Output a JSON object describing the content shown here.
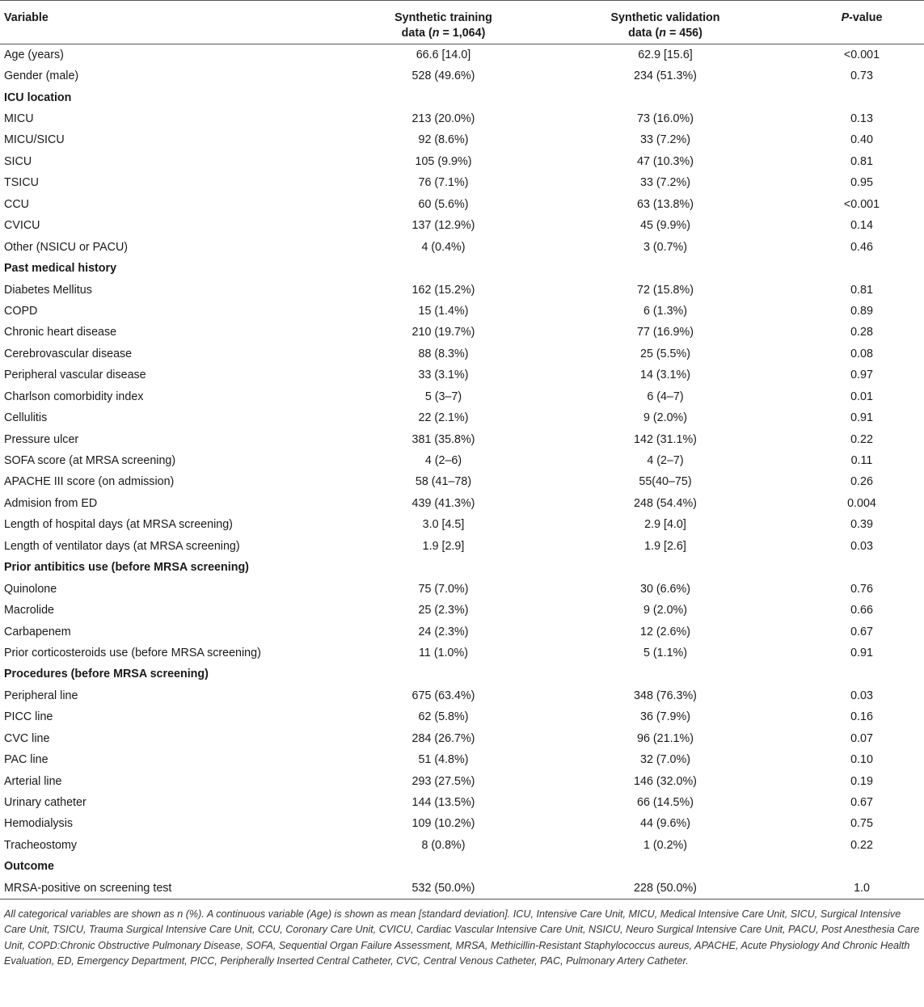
{
  "headers": {
    "variable": "Variable",
    "training_line1": "Synthetic training",
    "training_line2_pre": "data (",
    "training_n": "n",
    "training_line2_post": " = 1,064)",
    "validation_line1": "Synthetic validation",
    "validation_line2_pre": "data (",
    "validation_n": "n",
    "validation_line2_post": " = 456)",
    "pvalue_italic": "P",
    "pvalue_rest": "-value"
  },
  "rows": [
    {
      "type": "data",
      "variable": "Age (years)",
      "training": "66.6 [14.0]",
      "validation": "62.9 [15.6]",
      "p": "<0.001"
    },
    {
      "type": "data",
      "variable": "Gender (male)",
      "training": "528 (49.6%)",
      "validation": "234 (51.3%)",
      "p": "0.73"
    },
    {
      "type": "section",
      "variable": "ICU location"
    },
    {
      "type": "data",
      "variable": "MICU",
      "training": "213 (20.0%)",
      "validation": "73 (16.0%)",
      "p": "0.13"
    },
    {
      "type": "data",
      "variable": "MICU/SICU",
      "training": "92 (8.6%)",
      "validation": "33 (7.2%)",
      "p": "0.40"
    },
    {
      "type": "data",
      "variable": "SICU",
      "training": "105 (9.9%)",
      "validation": "47 (10.3%)",
      "p": "0.81"
    },
    {
      "type": "data",
      "variable": "TSICU",
      "training": "76 (7.1%)",
      "validation": "33 (7.2%)",
      "p": "0.95"
    },
    {
      "type": "data",
      "variable": "CCU",
      "training": "60 (5.6%)",
      "validation": "63 (13.8%)",
      "p": "<0.001"
    },
    {
      "type": "data",
      "variable": "CVICU",
      "training": "137 (12.9%)",
      "validation": "45 (9.9%)",
      "p": "0.14"
    },
    {
      "type": "data",
      "variable": "Other (NSICU or PACU)",
      "training": "4 (0.4%)",
      "validation": "3 (0.7%)",
      "p": "0.46"
    },
    {
      "type": "section",
      "variable": "Past medical history"
    },
    {
      "type": "data",
      "variable": "Diabetes Mellitus",
      "training": "162 (15.2%)",
      "validation": "72 (15.8%)",
      "p": "0.81"
    },
    {
      "type": "data",
      "variable": "COPD",
      "training": "15 (1.4%)",
      "validation": "6 (1.3%)",
      "p": "0.89"
    },
    {
      "type": "data",
      "variable": "Chronic heart disease",
      "training": "210 (19.7%)",
      "validation": "77 (16.9%)",
      "p": "0.28"
    },
    {
      "type": "data",
      "variable": "Cerebrovascular disease",
      "training": "88 (8.3%)",
      "validation": "25 (5.5%)",
      "p": "0.08"
    },
    {
      "type": "data",
      "variable": "Peripheral vascular disease",
      "training": "33 (3.1%)",
      "validation": "14 (3.1%)",
      "p": "0.97"
    },
    {
      "type": "data",
      "variable": "Charlson comorbidity index",
      "training": "5 (3–7)",
      "validation": "6 (4–7)",
      "p": "0.01"
    },
    {
      "type": "data",
      "variable": "Cellulitis",
      "training": "22 (2.1%)",
      "validation": "9 (2.0%)",
      "p": "0.91"
    },
    {
      "type": "data",
      "variable": "Pressure ulcer",
      "training": "381 (35.8%)",
      "validation": "142 (31.1%)",
      "p": "0.22"
    },
    {
      "type": "data",
      "variable": "SOFA score (at MRSA screening)",
      "training": "4 (2–6)",
      "validation": "4 (2–7)",
      "p": "0.11"
    },
    {
      "type": "data",
      "variable": "APACHE III score (on admission)",
      "training": "58 (41–78)",
      "validation": "55(40–75)",
      "p": "0.26"
    },
    {
      "type": "data",
      "variable": "Admision from ED",
      "training": "439 (41.3%)",
      "validation": "248 (54.4%)",
      "p": "0.004"
    },
    {
      "type": "data",
      "variable": "Length of hospital days (at MRSA screening)",
      "training": "3.0 [4.5]",
      "validation": "2.9 [4.0]",
      "p": "0.39"
    },
    {
      "type": "data",
      "variable": "Length of ventilator days (at MRSA screening)",
      "training": "1.9 [2.9]",
      "validation": "1.9 [2.6]",
      "p": "0.03"
    },
    {
      "type": "section",
      "variable": "Prior antibitics use (before MRSA screening)"
    },
    {
      "type": "data",
      "variable": "Quinolone",
      "training": "75 (7.0%)",
      "validation": "30 (6.6%)",
      "p": "0.76"
    },
    {
      "type": "data",
      "variable": "Macrolide",
      "training": "25 (2.3%)",
      "validation": "9 (2.0%)",
      "p": "0.66"
    },
    {
      "type": "data",
      "variable": "Carbapenem",
      "training": "24 (2.3%)",
      "validation": "12 (2.6%)",
      "p": "0.67"
    },
    {
      "type": "data",
      "variable": "Prior corticosteroids use (before MRSA screening)",
      "training": "11 (1.0%)",
      "validation": "5 (1.1%)",
      "p": "0.91"
    },
    {
      "type": "section",
      "variable": "Procedures (before MRSA screening)"
    },
    {
      "type": "data",
      "variable": "Peripheral line",
      "training": "675 (63.4%)",
      "validation": "348 (76.3%)",
      "p": "0.03"
    },
    {
      "type": "data",
      "variable": "PICC line",
      "training": "62 (5.8%)",
      "validation": "36 (7.9%)",
      "p": "0.16"
    },
    {
      "type": "data",
      "variable": "CVC line",
      "training": "284 (26.7%)",
      "validation": "96 (21.1%)",
      "p": "0.07"
    },
    {
      "type": "data",
      "variable": "PAC line",
      "training": "51 (4.8%)",
      "validation": "32 (7.0%)",
      "p": "0.10"
    },
    {
      "type": "data",
      "variable": "Arterial line",
      "training": "293 (27.5%)",
      "validation": "146 (32.0%)",
      "p": "0.19"
    },
    {
      "type": "data",
      "variable": "Urinary catheter",
      "training": "144 (13.5%)",
      "validation": "66 (14.5%)",
      "p": "0.67"
    },
    {
      "type": "data",
      "variable": "Hemodialysis",
      "training": "109 (10.2%)",
      "validation": "44 (9.6%)",
      "p": "0.75"
    },
    {
      "type": "data",
      "variable": "Tracheostomy",
      "training": "8 (0.8%)",
      "validation": "1 (0.2%)",
      "p": "0.22"
    },
    {
      "type": "section",
      "variable": "Outcome"
    },
    {
      "type": "data",
      "variable": "MRSA-positive on screening test",
      "training": "532 (50.0%)",
      "validation": "228 (50.0%)",
      "p": "1.0"
    }
  ],
  "footnote": "All categorical variables are shown as n (%). A continuous variable (Age) is shown as mean [standard deviation]. ICU, Intensive Care Unit, MICU, Medical Intensive Care Unit, SICU, Surgical Intensive Care Unit, TSICU, Trauma Surgical Intensive Care Unit, CCU, Coronary Care Unit, CVICU, Cardiac Vascular Intensive Care Unit, NSICU, Neuro Surgical Intensive Care Unit, PACU, Post Anesthesia Care Unit, COPD:Chronic Obstructive Pulmonary Disease, SOFA, Sequential Organ Failure Assessment, MRSA, Methicillin-Resistant Staphylococcus aureus, APACHE, Acute Physiology And Chronic Health Evaluation, ED, Emergency Department, PICC, Peripherally Inserted Central Catheter, CVC, Central Venous Catheter, PAC, Pulmonary Artery Catheter."
}
